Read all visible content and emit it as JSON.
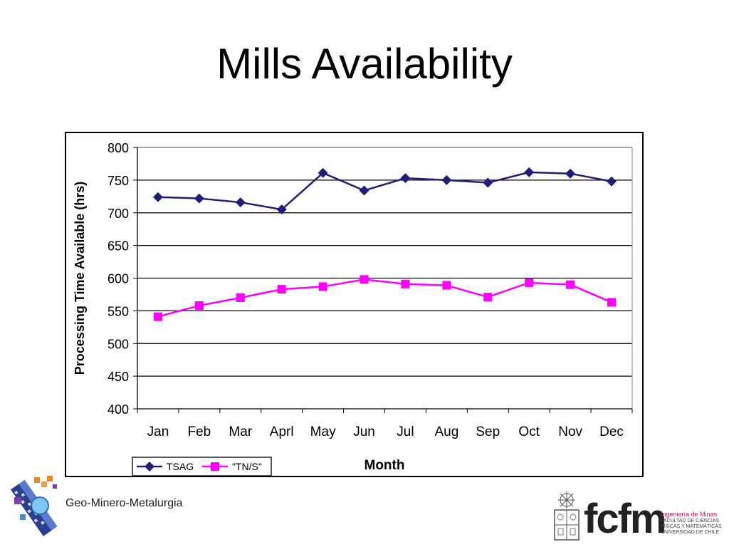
{
  "slide": {
    "title": "Mills Availability"
  },
  "chart_data": {
    "type": "line",
    "categories": [
      "Jan",
      "Feb",
      "Mar",
      "Aprl",
      "May",
      "Jun",
      "Jul",
      "Aug",
      "Sep",
      "Oct",
      "Nov",
      "Dec"
    ],
    "series": [
      {
        "name": "TSAG",
        "marker": "diamond",
        "color": "#1f1f7a",
        "values": [
          724,
          722,
          716,
          705,
          761,
          734,
          753,
          750,
          746,
          762,
          760,
          748
        ]
      },
      {
        "name": "\"TN/S\"",
        "marker": "square",
        "color": "#ff00ff",
        "values": [
          541,
          558,
          570,
          583,
          587,
          598,
          591,
          589,
          571,
          593,
          590,
          563
        ]
      }
    ],
    "xlabel": "Month",
    "ylabel": "Processing Time Available (hrs)",
    "ylim": [
      400,
      800
    ],
    "yticks": [
      400,
      450,
      500,
      550,
      600,
      650,
      700,
      750,
      800
    ],
    "grid": true,
    "legend": "bottom-left"
  },
  "branding": {
    "left_logo_text": "Geo-Minero-Metalurgia",
    "right_logo_text": "fcfm",
    "institution_title": "Ingeniería de Minas",
    "institution_lines": [
      "FACULTAD DE CIENCIAS",
      "FÍSICAS Y MATEMÁTICAS",
      "UNIVERSIDAD DE CHILE"
    ]
  }
}
